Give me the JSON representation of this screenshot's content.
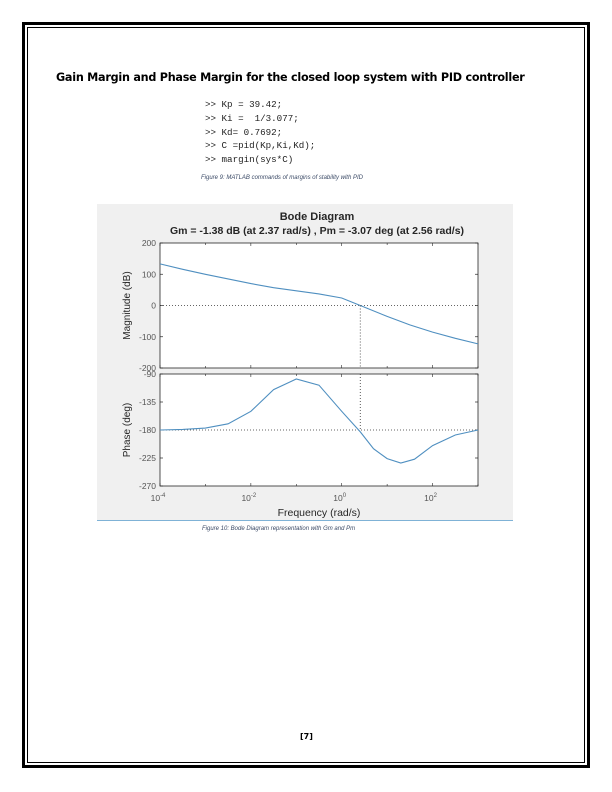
{
  "heading": "Gain Margin and Phase Margin for the closed loop system with PID controller",
  "code_lines": [
    ">> Kp = 39.42;",
    ">> Ki =  1/3.077;",
    ">> Kd= 0.7692;",
    ">> C =pid(Kp,Ki,Kd);",
    ">> margin(sys*C)"
  ],
  "caption_code": "Figure 9: MATLAB commands of margins of stability with PID",
  "caption_bode": "Figure 10: Bode Diagram representation with Gm and Pm",
  "page_number": "[7]",
  "colors": {
    "curve": "#4f8fc0",
    "axes_bg": "#ffffff",
    "figure_bg": "#f0f0f0",
    "text": "#262626"
  },
  "chart_data": {
    "type": "line",
    "title": "Bode Diagram",
    "subtitle": "Gm = -1.38 dB (at 2.37 rad/s) ,  Pm = -3.07 deg (at 2.56 rad/s)",
    "xlabel": "Frequency  (rad/s)",
    "xscale": "log",
    "xlim": [
      0.0001,
      1000
    ],
    "xtick_labels": [
      "10-4",
      "10-2",
      "100",
      "102"
    ],
    "crossover_frequency": 2.56,
    "magnitude": {
      "ylabel": "Magnitude (dB)",
      "ylim": [
        -200,
        200
      ],
      "ytick_labels": [
        "200",
        "100",
        "0",
        "-100",
        "-200"
      ],
      "reference_line": 0,
      "x": [
        0.0001,
        0.000316,
        0.001,
        0.00316,
        0.01,
        0.0316,
        0.1,
        0.316,
        1,
        2.56,
        10,
        31.6,
        100,
        316,
        1000
      ],
      "y": [
        133,
        116,
        100,
        85,
        70,
        57,
        47,
        37,
        24,
        0,
        -35,
        -62,
        -85,
        -105,
        -123
      ]
    },
    "phase": {
      "ylabel": "Phase (deg)",
      "ylim": [
        -270,
        -90
      ],
      "ytick_labels": [
        "-90",
        "-135",
        "-180",
        "-225",
        "-270"
      ],
      "reference_line": -180,
      "x": [
        0.0001,
        0.000316,
        0.001,
        0.00316,
        0.01,
        0.0316,
        0.1,
        0.316,
        1,
        2.56,
        5,
        10,
        20,
        40,
        100,
        316,
        1000
      ],
      "y": [
        -180,
        -179,
        -177,
        -170,
        -150,
        -115,
        -98,
        -108,
        -150,
        -183,
        -210,
        -226,
        -233,
        -227,
        -205,
        -188,
        -180
      ]
    }
  }
}
